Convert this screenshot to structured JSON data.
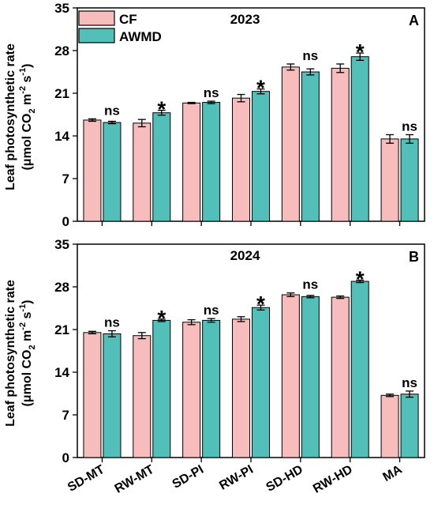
{
  "legend": {
    "entries": [
      {
        "label": "CF",
        "color": "#f7bdbd"
      },
      {
        "label": "AWMD",
        "color": "#52bfb8"
      }
    ]
  },
  "y_axis_label_line1": "Leaf photosynthetic rate",
  "y_axis_label_line2": {
    "pre": "(μmol CO",
    "sub": "2",
    "mid1": " m",
    "sup1": "-2",
    "mid2": " s",
    "sup2": "-1",
    "post": ")"
  },
  "chart_data": [
    {
      "type": "bar",
      "title": "2023",
      "panel_letter": "A",
      "categories": [
        "SD-MT",
        "RW-MT",
        "SD-PI",
        "RW-PI",
        "SD-HD",
        "RW-HD",
        "MA"
      ],
      "ylim": [
        0,
        35
      ],
      "yticks": [
        0,
        7,
        14,
        21,
        28,
        35
      ],
      "series": [
        {
          "name": "CF",
          "color": "#f7bdbd",
          "values": [
            16.6,
            16.1,
            19.4,
            20.2,
            25.3,
            25.1,
            13.5
          ],
          "errors": [
            0.2,
            0.6,
            0.1,
            0.6,
            0.5,
            0.7,
            0.7
          ]
        },
        {
          "name": "AWMD",
          "color": "#52bfb8",
          "values": [
            16.2,
            17.8,
            19.5,
            21.3,
            24.5,
            27.0,
            13.5
          ],
          "errors": [
            0.2,
            0.4,
            0.2,
            0.4,
            0.5,
            0.6,
            0.7
          ]
        }
      ],
      "annotations": [
        "ns",
        "*",
        "ns",
        "*",
        "ns",
        "*",
        "ns"
      ],
      "legend_position": "top-left",
      "grid": false
    },
    {
      "type": "bar",
      "title": "2024",
      "panel_letter": "B",
      "categories": [
        "SD-MT",
        "RW-MT",
        "SD-PI",
        "RW-PI",
        "SD-HD",
        "RW-HD",
        "MA"
      ],
      "ylim": [
        0,
        35
      ],
      "yticks": [
        0,
        7,
        14,
        21,
        28,
        35
      ],
      "series": [
        {
          "name": "CF",
          "color": "#f7bdbd",
          "values": [
            20.5,
            20.0,
            22.2,
            22.7,
            26.7,
            26.3,
            10.2
          ],
          "errors": [
            0.2,
            0.5,
            0.4,
            0.4,
            0.3,
            0.2,
            0.2
          ]
        },
        {
          "name": "AWMD",
          "color": "#52bfb8",
          "values": [
            20.3,
            22.5,
            22.5,
            24.6,
            26.4,
            28.9,
            10.4
          ],
          "errors": [
            0.5,
            0.2,
            0.3,
            0.4,
            0.2,
            0.2,
            0.5
          ]
        }
      ],
      "annotations": [
        "ns",
        "*",
        "ns",
        "*",
        "ns",
        "*",
        "ns"
      ],
      "xlabel": "",
      "grid": false
    }
  ]
}
